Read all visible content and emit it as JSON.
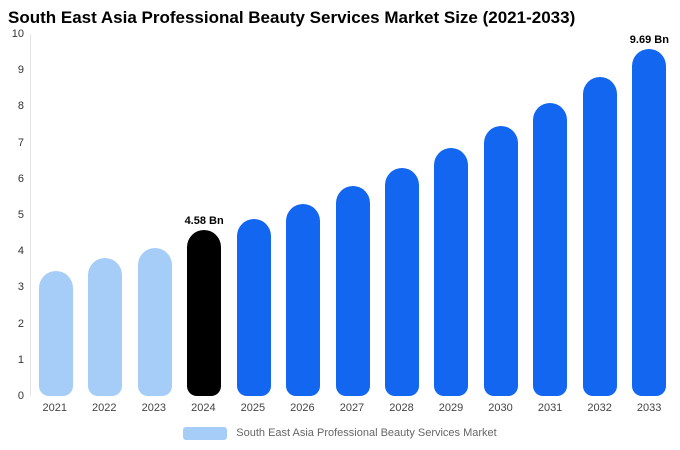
{
  "title": "South East Asia Professional Beauty Services Market Size (2021-2033)",
  "legend": {
    "label": "South East Asia Professional Beauty Services Market",
    "swatch_color": "#a6cdf7"
  },
  "colors": {
    "light_blue": "#a6cdf7",
    "primary_blue": "#1266f0",
    "highlight_black": "#000000"
  },
  "chart_data": {
    "type": "bar",
    "title": "South East Asia Professional Beauty Services Market Size (2021-2033)",
    "categories": [
      "2021",
      "2022",
      "2023",
      "2024",
      "2025",
      "2026",
      "2027",
      "2028",
      "2029",
      "2030",
      "2031",
      "2032",
      "2033"
    ],
    "values": [
      3.45,
      3.8,
      4.1,
      4.58,
      4.9,
      5.3,
      5.8,
      6.3,
      6.85,
      7.45,
      8.1,
      8.8,
      9.69
    ],
    "bar_colors": [
      "#a6cdf7",
      "#a6cdf7",
      "#a6cdf7",
      "#000000",
      "#1266f0",
      "#1266f0",
      "#1266f0",
      "#1266f0",
      "#1266f0",
      "#1266f0",
      "#1266f0",
      "#1266f0",
      "#1266f0"
    ],
    "annotations": [
      "",
      "",
      "",
      "4.58 Bn",
      "",
      "",
      "",
      "",
      "",
      "",
      "",
      "",
      "9.69 Bn"
    ],
    "xlabel": "",
    "ylabel": "",
    "ylim": [
      0,
      10
    ],
    "yticks": [
      0,
      1,
      2,
      3,
      4,
      5,
      6,
      7,
      8,
      9,
      10
    ],
    "grid": false,
    "legend_position": "bottom",
    "legend_entries": [
      "South East Asia Professional Beauty Services Market"
    ]
  }
}
